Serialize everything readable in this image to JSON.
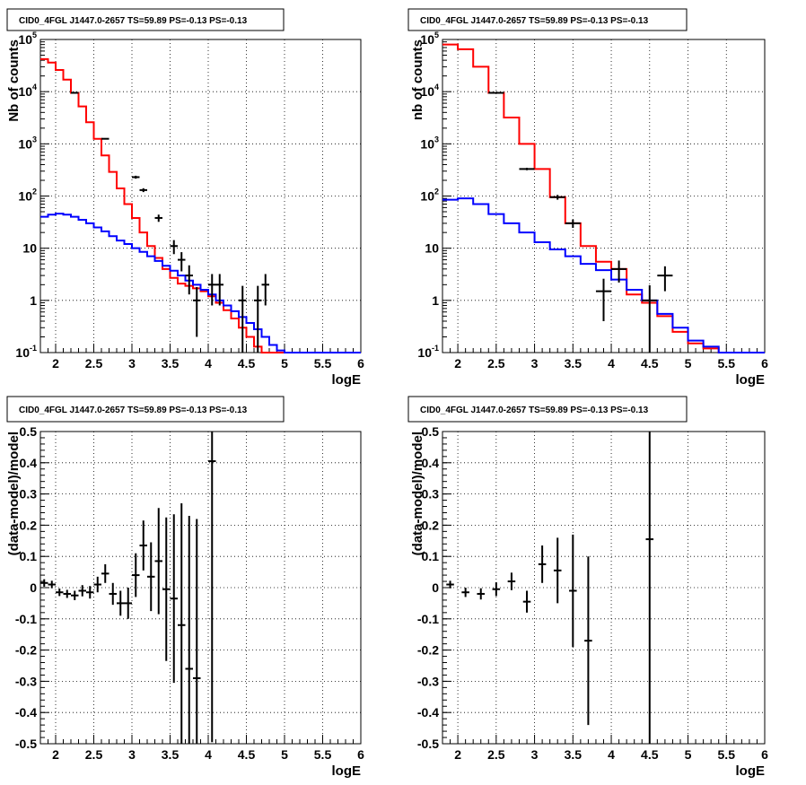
{
  "chart_data": [
    {
      "type": "line",
      "title": "CID0_4FGL J1447.0-2657 TS=59.89 PS=-0.13 PS=-0.13",
      "xlabel": "logE",
      "ylabel": "Nb of counts",
      "yscale": "log",
      "xlim": [
        1.8,
        6.0
      ],
      "ylim": [
        0.1,
        100000
      ],
      "grid": true,
      "x_ticks": [
        "2",
        "2.5",
        "3",
        "3.5",
        "4",
        "4.5",
        "5",
        "5.5",
        "6"
      ],
      "y_ticks": [
        "10^-1",
        "1",
        "10",
        "10^2",
        "10^3",
        "10^4",
        "10^5"
      ],
      "bin_edges": [
        1.8,
        1.9,
        2.0,
        2.1,
        2.2,
        2.3,
        2.4,
        2.5,
        2.6,
        2.7,
        2.8,
        2.9,
        3.0,
        3.1,
        3.2,
        3.3,
        3.4,
        3.5,
        3.6,
        3.7,
        3.8,
        3.9,
        4.0,
        4.1,
        4.2,
        4.3,
        4.4,
        4.5,
        4.6,
        4.7,
        4.8,
        4.9,
        5.0,
        5.1,
        5.2,
        5.3,
        5.4,
        5.5,
        5.6,
        5.7,
        5.8,
        5.9,
        6.0
      ],
      "series": [
        {
          "color": "#ff0000",
          "values": [
            42000,
            36000,
            26000,
            17000,
            9500,
            5200,
            2600,
            1250,
            600,
            290,
            140,
            70,
            38,
            20,
            11,
            6.5,
            4.0,
            2.7,
            2.1,
            1.9,
            1.7,
            1.5,
            1.2,
            0.9,
            0.65,
            0.45,
            0.3,
            0.2,
            0.13,
            0.1,
            0.1,
            0.1,
            0.1,
            0.1,
            0.1,
            0.1,
            0.1,
            0.1,
            0.1,
            0.1,
            0.1,
            0.1
          ]
        },
        {
          "color": "#0000ff",
          "values": [
            40,
            44,
            46,
            44,
            40,
            35,
            30,
            25,
            21,
            17,
            14,
            12,
            10,
            8.5,
            7.0,
            5.7,
            4.6,
            3.7,
            3.0,
            2.4,
            2.0,
            1.6,
            1.3,
            1.0,
            0.8,
            0.62,
            0.48,
            0.37,
            0.28,
            0.2,
            0.14,
            0.11,
            0.1,
            0.1,
            0.1,
            0.1,
            0.1,
            0.1,
            0.1,
            0.1,
            0.1,
            0.1
          ]
        }
      ],
      "data_points": [
        {
          "x": 2.25,
          "y": 9500,
          "err": 100
        },
        {
          "x": 2.65,
          "y": 1250,
          "err": 35
        },
        {
          "x": 3.05,
          "y": 230,
          "err": 15
        },
        {
          "x": 3.15,
          "y": 130,
          "err": 11
        },
        {
          "x": 3.35,
          "y": 38,
          "err": 6
        },
        {
          "x": 3.55,
          "y": 11,
          "err": 3.3
        },
        {
          "x": 3.65,
          "y": 6,
          "err": 2.4
        },
        {
          "x": 3.75,
          "y": 3,
          "err": 1.7
        },
        {
          "x": 3.85,
          "y": 1,
          "err": 0.8
        },
        {
          "x": 4.05,
          "y": 2,
          "err": 1.2
        },
        {
          "x": 4.15,
          "y": 2,
          "err": 1.2
        },
        {
          "x": 4.45,
          "y": 1,
          "err": 0.9
        },
        {
          "x": 4.65,
          "y": 1,
          "err": 0.9
        },
        {
          "x": 4.75,
          "y": 2,
          "err": 1.2
        }
      ]
    },
    {
      "type": "line",
      "title": "CID0_4FGL J1447.0-2657 TS=59.89 PS=-0.13 PS=-0.13",
      "xlabel": "logE",
      "ylabel": "nb of counts",
      "yscale": "log",
      "xlim": [
        1.8,
        6.0
      ],
      "ylim": [
        0.1,
        100000
      ],
      "grid": true,
      "x_ticks": [
        "2",
        "2.5",
        "3",
        "3.5",
        "4",
        "4.5",
        "5",
        "5.5",
        "6"
      ],
      "y_ticks": [
        "10^-1",
        "1",
        "10",
        "10^2",
        "10^3",
        "10^4",
        "10^5"
      ],
      "bin_edges": [
        1.8,
        2.0,
        2.2,
        2.4,
        2.6,
        2.8,
        3.0,
        3.2,
        3.4,
        3.6,
        3.8,
        4.0,
        4.2,
        4.4,
        4.6,
        4.8,
        5.0,
        5.2,
        5.4,
        5.6,
        5.8,
        6.0
      ],
      "series": [
        {
          "color": "#ff0000",
          "values": [
            80000,
            65000,
            30000,
            9500,
            3200,
            1000,
            330,
            95,
            30,
            11,
            5.5,
            4.0,
            1.3,
            0.9,
            0.5,
            0.25,
            0.15,
            0.12,
            0.1,
            0.1,
            0.1
          ]
        },
        {
          "color": "#0000ff",
          "values": [
            85,
            90,
            70,
            45,
            30,
            20,
            13,
            9.5,
            7.0,
            5.0,
            3.8,
            2.5,
            1.6,
            1.0,
            0.55,
            0.3,
            0.17,
            0.13,
            0.1,
            0.1,
            0.1
          ]
        }
      ],
      "data_points": [
        {
          "x": 2.5,
          "y": 9500,
          "err": 100
        },
        {
          "x": 2.9,
          "y": 330,
          "err": 18
        },
        {
          "x": 3.3,
          "y": 95,
          "err": 10
        },
        {
          "x": 3.5,
          "y": 30,
          "err": 5.5
        },
        {
          "x": 3.9,
          "y": 1.5,
          "err": 1.1
        },
        {
          "x": 4.1,
          "y": 4,
          "err": 1.8
        },
        {
          "x": 4.5,
          "y": 1,
          "err": 0.95
        },
        {
          "x": 4.7,
          "y": 3,
          "err": 1.5
        }
      ]
    },
    {
      "type": "scatter",
      "title": "CID0_4FGL J1447.0-2657 TS=59.89 PS=-0.13 PS=-0.13",
      "xlabel": "logE",
      "ylabel": "(data-model)/model",
      "xlim": [
        1.8,
        6.0
      ],
      "ylim": [
        -0.5,
        0.5
      ],
      "grid": true,
      "x_ticks": [
        "2",
        "2.5",
        "3",
        "3.5",
        "4",
        "4.5",
        "5",
        "5.5",
        "6"
      ],
      "y_ticks": [
        "-0.5",
        "-0.4",
        "-0.3",
        "-0.2",
        "-0.1",
        "0",
        "0.1",
        "0.2",
        "0.3",
        "0.4",
        "0.5"
      ],
      "points": [
        {
          "x": 1.85,
          "y": 0.015,
          "err": 0.012
        },
        {
          "x": 1.95,
          "y": 0.01,
          "err": 0.012
        },
        {
          "x": 2.05,
          "y": -0.015,
          "err": 0.012
        },
        {
          "x": 2.15,
          "y": -0.02,
          "err": 0.013
        },
        {
          "x": 2.25,
          "y": -0.025,
          "err": 0.015
        },
        {
          "x": 2.35,
          "y": -0.01,
          "err": 0.018
        },
        {
          "x": 2.45,
          "y": -0.015,
          "err": 0.02
        },
        {
          "x": 2.55,
          "y": 0.01,
          "err": 0.025
        },
        {
          "x": 2.65,
          "y": 0.045,
          "err": 0.03
        },
        {
          "x": 2.75,
          "y": -0.02,
          "err": 0.035
        },
        {
          "x": 2.85,
          "y": -0.05,
          "err": 0.04
        },
        {
          "x": 2.95,
          "y": -0.05,
          "err": 0.05
        },
        {
          "x": 3.05,
          "y": 0.04,
          "err": 0.07
        },
        {
          "x": 3.15,
          "y": 0.135,
          "err": 0.08
        },
        {
          "x": 3.25,
          "y": 0.035,
          "err": 0.11
        },
        {
          "x": 3.35,
          "y": 0.085,
          "err": 0.17
        },
        {
          "x": 3.45,
          "y": -0.005,
          "err": 0.23
        },
        {
          "x": 3.55,
          "y": -0.035,
          "err": 0.27
        },
        {
          "x": 3.65,
          "y": -0.12,
          "err": 0.39
        },
        {
          "x": 3.75,
          "y": -0.26,
          "err": 0.49
        },
        {
          "x": 3.85,
          "y": -0.29,
          "err": 0.51
        },
        {
          "x": 4.05,
          "y": 0.405,
          "err": 0.9
        }
      ]
    },
    {
      "type": "scatter",
      "title": "CID0_4FGL J1447.0-2657 TS=59.89 PS=-0.13 PS=-0.13",
      "xlabel": "logE",
      "ylabel": "(data-model)/model",
      "xlim": [
        1.8,
        6.0
      ],
      "ylim": [
        -0.5,
        0.5
      ],
      "grid": true,
      "x_ticks": [
        "2",
        "2.5",
        "3",
        "3.5",
        "4",
        "4.5",
        "5",
        "5.5",
        "6"
      ],
      "y_ticks": [
        "-0.5",
        "-0.4",
        "-0.3",
        "-0.2",
        "-0.1",
        "0",
        "0.1",
        "0.2",
        "0.3",
        "0.4",
        "0.5"
      ],
      "points": [
        {
          "x": 1.9,
          "y": 0.01,
          "err": 0.012
        },
        {
          "x": 2.1,
          "y": -0.015,
          "err": 0.015
        },
        {
          "x": 2.3,
          "y": -0.02,
          "err": 0.018
        },
        {
          "x": 2.5,
          "y": -0.005,
          "err": 0.022
        },
        {
          "x": 2.7,
          "y": 0.02,
          "err": 0.028
        },
        {
          "x": 2.9,
          "y": -0.045,
          "err": 0.035
        },
        {
          "x": 3.1,
          "y": 0.075,
          "err": 0.06
        },
        {
          "x": 3.3,
          "y": 0.055,
          "err": 0.105
        },
        {
          "x": 3.5,
          "y": -0.01,
          "err": 0.18
        },
        {
          "x": 3.7,
          "y": -0.17,
          "err": 0.27
        },
        {
          "x": 4.5,
          "y": 0.155,
          "err": 1.0
        }
      ]
    }
  ]
}
